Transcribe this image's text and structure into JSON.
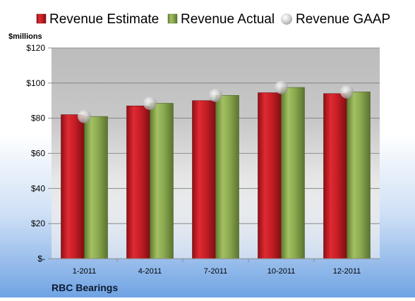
{
  "colors": {
    "estimate": "#c8202a",
    "actual": "#8aa84e",
    "gaap": "#bfbfbf"
  },
  "chart_data": {
    "type": "bar",
    "title": "",
    "xlabel": "",
    "ylabel": "$millions",
    "company": "RBC Bearings",
    "categories": [
      "1-2011",
      "4-2011",
      "7-2011",
      "10-2011",
      "12-2011"
    ],
    "series": [
      {
        "name": "Revenue Estimate",
        "type": "bar",
        "values": [
          82,
          87,
          90,
          94.5,
          94
        ]
      },
      {
        "name": "Revenue Actual",
        "type": "bar",
        "values": [
          81,
          88.5,
          93,
          97.5,
          95
        ]
      },
      {
        "name": "Revenue GAAP",
        "type": "scatter",
        "values": [
          81,
          88.5,
          93,
          97.5,
          95
        ]
      }
    ],
    "ylim": [
      0,
      120
    ],
    "yticks": [
      {
        "value": 0,
        "label": "$-"
      },
      {
        "value": 20,
        "label": "$20"
      },
      {
        "value": 40,
        "label": "$40"
      },
      {
        "value": 60,
        "label": "$60"
      },
      {
        "value": 80,
        "label": "$80"
      },
      {
        "value": 100,
        "label": "$100"
      },
      {
        "value": 120,
        "label": "$120"
      }
    ],
    "grid": true,
    "legend_position": "top"
  }
}
